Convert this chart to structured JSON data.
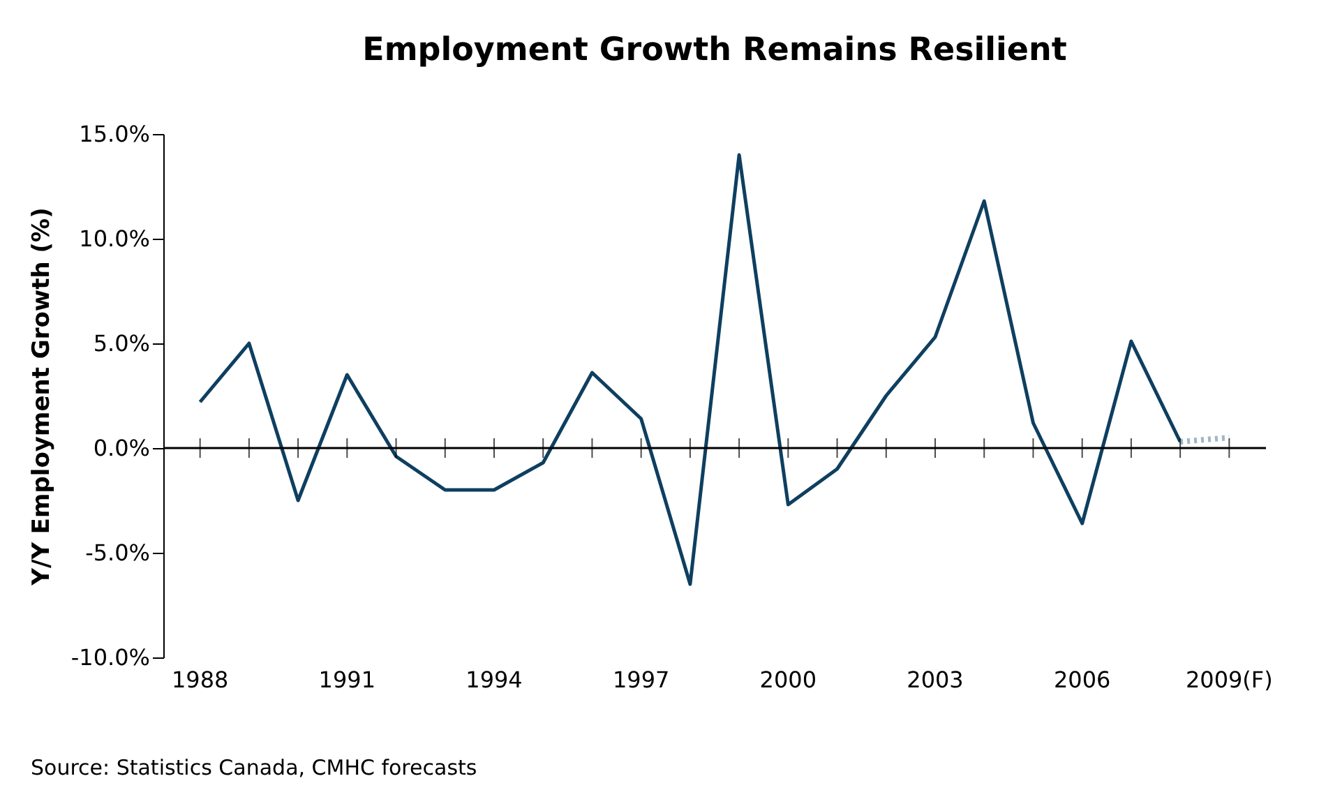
{
  "chart_data": {
    "type": "line",
    "title": "Employment Growth Remains Resilient",
    "ylabel": "Y/Y Employment Growth (%)",
    "categories": [
      "1988",
      null,
      null,
      "1991",
      null,
      null,
      "1994",
      null,
      null,
      "1997",
      null,
      null,
      "2000",
      null,
      null,
      "2003",
      null,
      null,
      "2006",
      null,
      null,
      "2009(F)"
    ],
    "series": [
      {
        "color": "#0e3f60",
        "values": [
          2.2,
          5.0,
          -2.5,
          3.5,
          -0.4,
          -2.0,
          -2.0,
          -0.7,
          3.6,
          1.4,
          -6.5,
          14.0,
          -2.7,
          -1.0,
          2.5,
          5.3,
          11.8,
          1.2,
          -3.6,
          5.1,
          0.3,
          null
        ]
      },
      {
        "color": "#9fb6c6",
        "line_style": "dotted",
        "values": [
          null,
          null,
          null,
          null,
          null,
          null,
          null,
          null,
          null,
          null,
          null,
          null,
          null,
          null,
          null,
          null,
          null,
          null,
          null,
          null,
          0.3,
          0.5
        ]
      }
    ],
    "ylim": [
      -10,
      15
    ],
    "yticks": [
      {
        "value": -10,
        "label": "-10.0%"
      },
      {
        "value": -5,
        "label": "-5.0%"
      },
      {
        "value": 0,
        "label": "0.0%"
      },
      {
        "value": 5,
        "label": "5.0%"
      },
      {
        "value": 10,
        "label": "10.0%"
      },
      {
        "value": 15,
        "label": "15.0%"
      }
    ],
    "ref_lines": [
      {
        "axis": "y",
        "value": 0,
        "label": null
      }
    ],
    "grid": false,
    "marker": "none",
    "annotations": [
      "Source: Statistics Canada, CMHC forecasts"
    ]
  }
}
